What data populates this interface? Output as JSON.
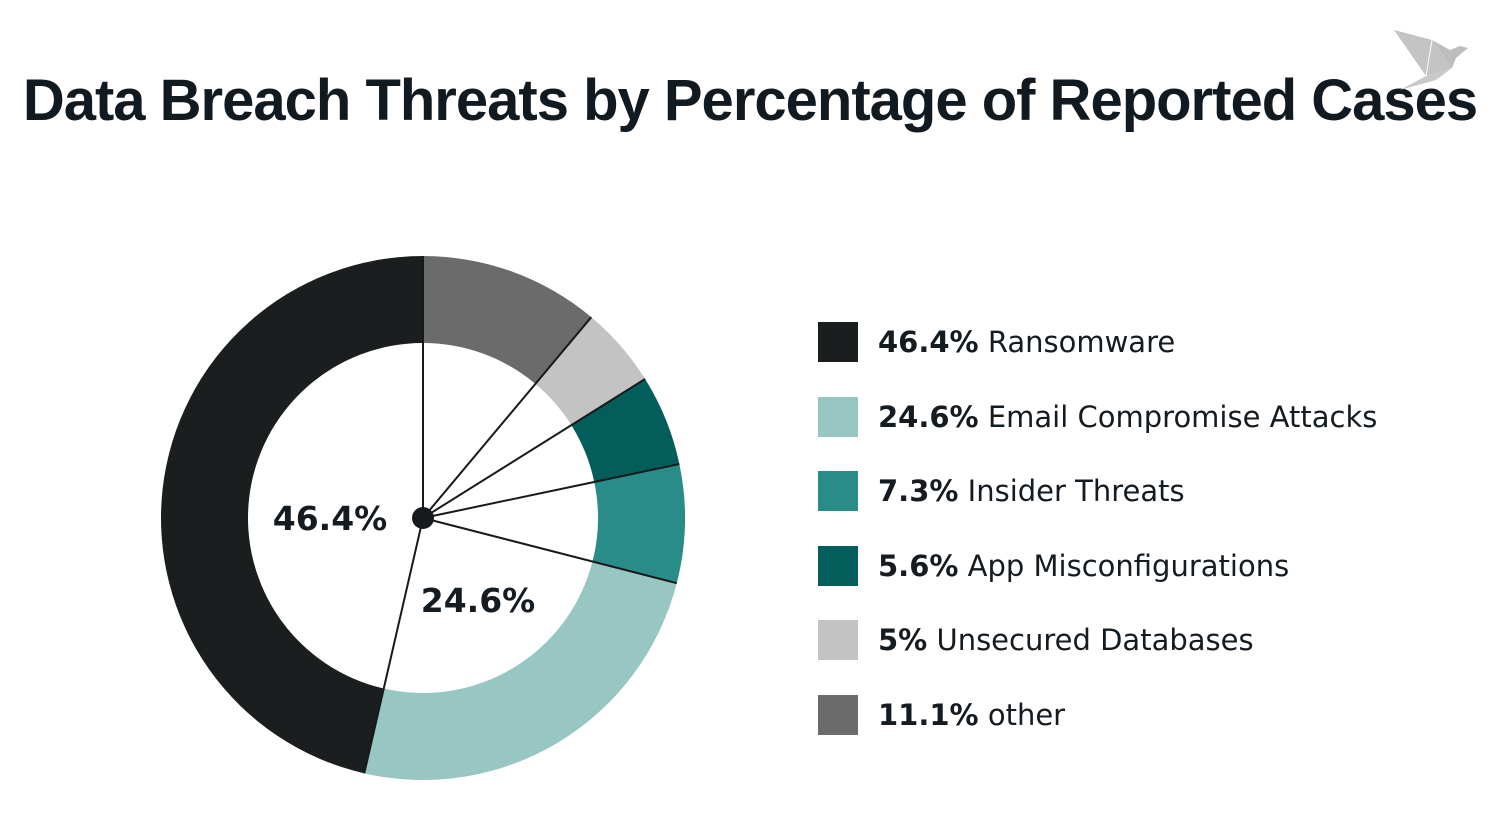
{
  "title": "Data Breach Threats by Percentage of Reported Cases",
  "logo": "origami-bird-logo",
  "chart_data": {
    "type": "pie",
    "subtype": "donut",
    "title": "Data Breach Threats by Percentage of Reported Cases",
    "start": "top",
    "direction": "clockwise",
    "slices": [
      {
        "label": "other",
        "value": 11.1,
        "value_label": "11.1%",
        "color": "#6b6b6b"
      },
      {
        "label": "Unsecured Databases",
        "value": 5,
        "value_label": "5%",
        "color": "#c3c3c3"
      },
      {
        "label": "App Misconfigurations",
        "value": 5.6,
        "value_label": "5.6%",
        "color": "#035d5a"
      },
      {
        "label": "Insider Threats",
        "value": 7.3,
        "value_label": "7.3%",
        "color": "#2a8c89"
      },
      {
        "label": "Email Compromise Attacks",
        "value": 24.6,
        "value_label": "24.6%",
        "color": "#98c6c3"
      },
      {
        "label": "Ransomware",
        "value": 46.4,
        "value_label": "46.4%",
        "color": "#1b1e1f"
      }
    ],
    "data_labels": [
      {
        "slice": "Ransomware",
        "text": "46.4%"
      },
      {
        "slice": "Email Compromise Attacks",
        "text": "24.6%"
      }
    ],
    "legend_placement": "right",
    "legend": [
      {
        "value": "46.4%",
        "label": "Ransomware",
        "color": "#1b1e1f"
      },
      {
        "value": "24.6%",
        "label": "Email Compromise Attacks",
        "color": "#98c6c3"
      },
      {
        "value": "7.3%",
        "label": "Insider Threats",
        "color": "#2a8c89"
      },
      {
        "value": "5.6%",
        "label": "App Misconfigurations",
        "color": "#035d5a"
      },
      {
        "value": "5%",
        "label": "Unsecured Databases",
        "color": "#c3c3c3"
      },
      {
        "value": "11.1%",
        "label": "other",
        "color": "#6b6b6b"
      }
    ]
  }
}
